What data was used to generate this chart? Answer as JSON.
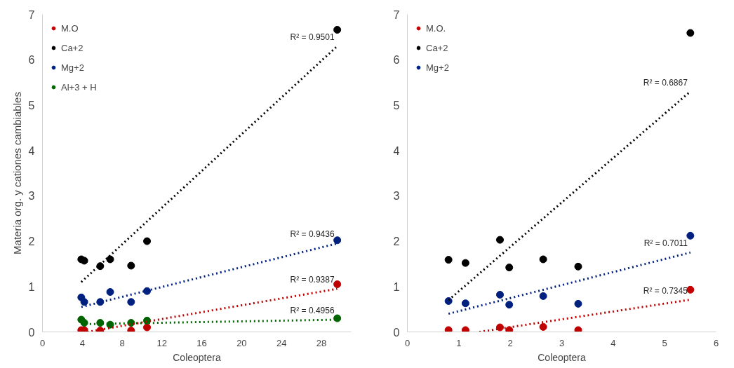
{
  "chart_data": [
    {
      "type": "scatter",
      "xlabel": "Coleoptera",
      "ylabel": "Materia org. y cationes cambiables",
      "xlim": [
        0,
        31
      ],
      "ylim": [
        0,
        7
      ],
      "xticks": [
        0,
        4,
        8,
        12,
        16,
        20,
        24,
        28
      ],
      "yticks": [
        0,
        1,
        2,
        3,
        4,
        5,
        6,
        7
      ],
      "grid": false,
      "legend": "top left",
      "marker": "circle",
      "x": [
        3.9,
        4.2,
        5.8,
        6.8,
        8.9,
        10.5,
        29.6
      ],
      "series": [
        {
          "name": "M.O",
          "color": "#c00000",
          "values": [
            0.04,
            0.04,
            0.03,
            null,
            0.03,
            0.1,
            1.05
          ]
        },
        {
          "name": "Ca+2",
          "color": "#000000",
          "values": [
            1.6,
            1.57,
            1.45,
            1.6,
            1.46,
            2.0,
            6.66
          ]
        },
        {
          "name": "Mg+2",
          "color": "#002080",
          "values": [
            0.76,
            0.66,
            0.66,
            0.88,
            0.66,
            0.9,
            2.02
          ]
        },
        {
          "name": "Al+3 + H",
          "color": "#006400",
          "values": [
            0.27,
            0.2,
            0.2,
            0.16,
            0.2,
            0.25,
            0.3
          ]
        },
        {
          "type": "line",
          "color": "#000000",
          "line_style": "dotted",
          "marker": "none",
          "x": [
            3.9,
            29.6
          ],
          "values": [
            1.1,
            6.3
          ]
        },
        {
          "type": "line",
          "color": "#002080",
          "line_style": "dotted",
          "marker": "none",
          "x": [
            3.9,
            29.6
          ],
          "values": [
            0.55,
            1.95
          ]
        },
        {
          "type": "line",
          "color": "#c00000",
          "line_style": "dotted",
          "marker": "none",
          "x": [
            4.5,
            29.6
          ],
          "values": [
            0.0,
            0.95
          ]
        },
        {
          "type": "line",
          "color": "#006400",
          "line_style": "dotted",
          "marker": "none",
          "x": [
            3.9,
            29.6
          ],
          "values": [
            0.17,
            0.27
          ]
        }
      ],
      "annotations": [
        "R² = 0.9501",
        "R² = 0.9436",
        "R² = 0.9387",
        "R² = 0.4956"
      ]
    },
    {
      "type": "scatter",
      "xlabel": "Coleoptera",
      "xlim": [
        0,
        6
      ],
      "ylim": [
        0,
        7
      ],
      "xticks": [
        0,
        1,
        2,
        3,
        4,
        5,
        6
      ],
      "yticks": [
        0,
        1,
        2,
        3,
        4,
        5,
        6,
        7
      ],
      "grid": false,
      "legend": "top left",
      "marker": "circle",
      "x": [
        0.8,
        1.13,
        1.8,
        1.98,
        2.64,
        3.32,
        5.5
      ],
      "series": [
        {
          "name": "M.O.",
          "color": "#c00000",
          "values": [
            0.04,
            0.04,
            0.1,
            0.04,
            0.11,
            0.04,
            0.93
          ]
        },
        {
          "name": "Ca+2",
          "color": "#000000",
          "values": [
            1.59,
            1.52,
            2.03,
            1.42,
            1.6,
            1.44,
            6.59
          ]
        },
        {
          "name": "Mg+2",
          "color": "#002080",
          "values": [
            0.68,
            0.63,
            0.82,
            0.6,
            0.79,
            0.62,
            2.12
          ]
        },
        {
          "type": "line",
          "color": "#000000",
          "line_style": "dotted",
          "marker": "none",
          "x": [
            0.8,
            5.5
          ],
          "values": [
            0.7,
            5.3
          ]
        },
        {
          "type": "line",
          "color": "#002080",
          "line_style": "dotted",
          "marker": "none",
          "x": [
            0.8,
            5.5
          ],
          "values": [
            0.4,
            1.75
          ]
        },
        {
          "type": "line",
          "color": "#c00000",
          "line_style": "dotted",
          "marker": "none",
          "x": [
            1.4,
            5.5
          ],
          "values": [
            0.0,
            0.71
          ]
        }
      ],
      "annotations": [
        "R² = 0.6867",
        "R² = 0.7011",
        "R² = 0.7345"
      ]
    }
  ]
}
